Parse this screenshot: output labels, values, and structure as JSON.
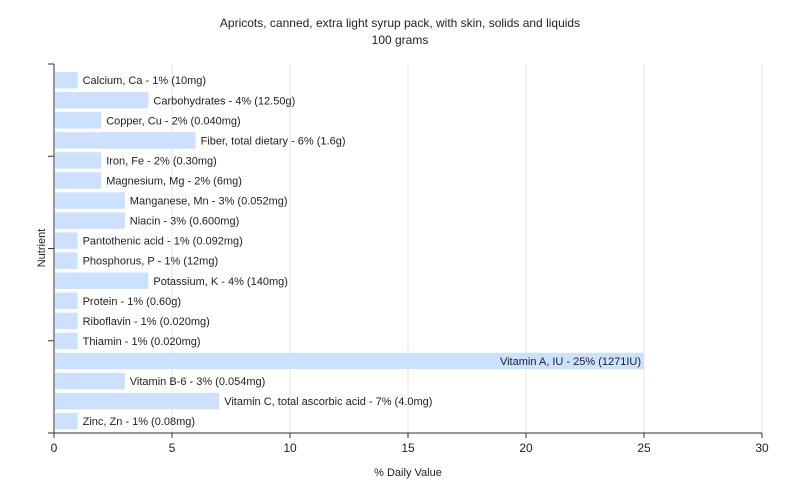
{
  "chart_data": {
    "type": "bar",
    "orientation": "horizontal",
    "title": "Apricots, canned, extra light syrup pack, with skin, solids and liquids",
    "subtitle": "100 grams",
    "xlabel": "% Daily Value",
    "ylabel": "Nutrient",
    "xlim": [
      0,
      30
    ],
    "xticks": [
      "0",
      "5",
      "10",
      "15",
      "20",
      "25",
      "30"
    ],
    "grid": true,
    "categories": [
      "Calcium, Ca",
      "Carbohydrates",
      "Copper, Cu",
      "Fiber, total dietary",
      "Iron, Fe",
      "Magnesium, Mg",
      "Manganese, Mn",
      "Niacin",
      "Pantothenic acid",
      "Phosphorus, P",
      "Potassium, K",
      "Protein",
      "Riboflavin",
      "Thiamin",
      "Vitamin A, IU",
      "Vitamin B-6",
      "Vitamin C, total ascorbic acid",
      "Zinc, Zn"
    ],
    "values": [
      1,
      4,
      2,
      6,
      2,
      2,
      3,
      3,
      1,
      1,
      4,
      1,
      1,
      1,
      25,
      3,
      7,
      1
    ],
    "labels": [
      "Calcium, Ca - 1% (10mg)",
      "Carbohydrates - 4% (12.50g)",
      "Copper, Cu - 2% (0.040mg)",
      "Fiber, total dietary - 6% (1.6g)",
      "Iron, Fe - 2% (0.30mg)",
      "Magnesium, Mg - 2% (6mg)",
      "Manganese, Mn - 3% (0.052mg)",
      "Niacin - 3% (0.600mg)",
      "Pantothenic acid - 1% (0.092mg)",
      "Phosphorus, P - 1% (12mg)",
      "Potassium, K - 4% (140mg)",
      "Protein - 1% (0.60g)",
      "Riboflavin - 1% (0.020mg)",
      "Thiamin - 1% (0.020mg)",
      "Vitamin A, IU - 25% (1271IU)",
      "Vitamin B-6 - 3% (0.054mg)",
      "Vitamin C, total ascorbic acid - 7% (4.0mg)",
      "Zinc, Zn - 1% (0.08mg)"
    ],
    "bar_color": "#cce0ff"
  }
}
